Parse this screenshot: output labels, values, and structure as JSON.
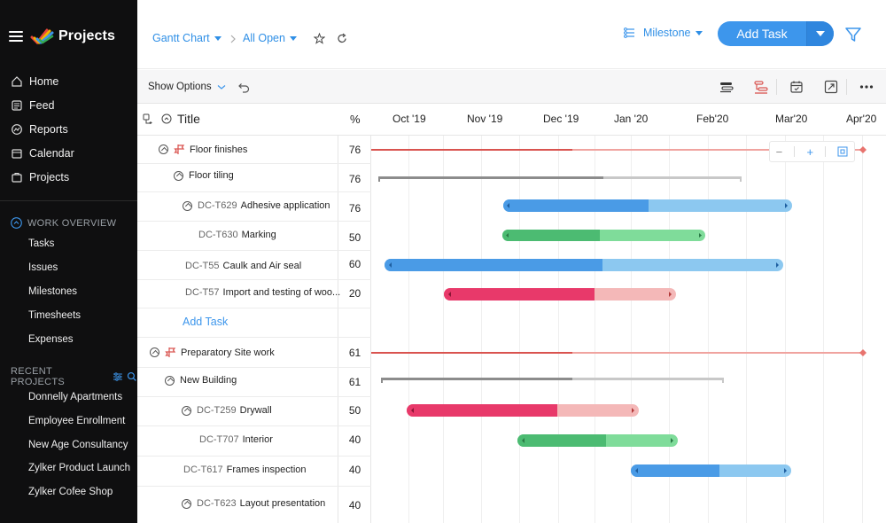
{
  "app": {
    "title": "Projects"
  },
  "sidebar": {
    "nav": [
      {
        "label": "Home",
        "icon": "home-icon"
      },
      {
        "label": "Feed",
        "icon": "feed-icon"
      },
      {
        "label": "Reports",
        "icon": "reports-icon"
      },
      {
        "label": "Calendar",
        "icon": "calendar-icon"
      },
      {
        "label": "Projects",
        "icon": "projects-icon"
      }
    ],
    "work_overview": {
      "heading": "WORK OVERVIEW",
      "items": [
        "Tasks",
        "Issues",
        "Milestones",
        "Timesheets",
        "Expenses"
      ]
    },
    "recent_projects": {
      "heading": "RECENT PROJECTS",
      "items": [
        "Donnelly Apartments",
        "Employee Enrollment",
        "New Age Consultancy",
        "Zylker Product Launch",
        "Zylker Cofee Shop"
      ]
    }
  },
  "topbar": {
    "view": "Gantt Chart",
    "filter": "All Open",
    "group_by": "Milestone",
    "add_task": "Add Task"
  },
  "toolbar": {
    "show_options": "Show Options"
  },
  "grid": {
    "title_header": "Title",
    "pct_header": "%",
    "months": [
      "Oct '19",
      "Nov '19",
      "Dec '19",
      "Jan '20",
      "Feb'20",
      "Mar'20",
      "Apr'20"
    ],
    "add_task_link": "Add Task",
    "rows": [
      {
        "code": "",
        "title": "Floor finishes",
        "pct": "76",
        "kind": "milestone"
      },
      {
        "code": "",
        "title": "Floor tiling",
        "pct": "76",
        "kind": "tasklist"
      },
      {
        "code": "DC-T629",
        "title": "Adhesive application",
        "pct": "76",
        "kind": "task-parent"
      },
      {
        "code": "DC-T630",
        "title": "Marking",
        "pct": "50",
        "kind": "subtask"
      },
      {
        "code": "DC-T55",
        "title": "Caulk and Air seal",
        "pct": "60",
        "kind": "task"
      },
      {
        "code": "DC-T57",
        "title": "Import and testing of woo...",
        "pct": "20",
        "kind": "task"
      },
      {
        "code": "",
        "title": "",
        "pct": "",
        "kind": "add"
      },
      {
        "code": "",
        "title": "Preparatory Site work",
        "pct": "61",
        "kind": "milestone"
      },
      {
        "code": "",
        "title": "New Building",
        "pct": "61",
        "kind": "tasklist"
      },
      {
        "code": "DC-T259",
        "title": "Drywall",
        "pct": "50",
        "kind": "task-parent"
      },
      {
        "code": "DC-T707",
        "title": "Interior",
        "pct": "40",
        "kind": "subtask"
      },
      {
        "code": "DC-T617",
        "title": "Frames inspection",
        "pct": "40",
        "kind": "task"
      },
      {
        "code": "DC-T623",
        "title": "Layout presentation",
        "pct": "40",
        "kind": "task-parent"
      }
    ]
  },
  "colors": {
    "accent": "#3d96ec",
    "milestone": "#d9534f",
    "blue_done": "#4a9be6",
    "blue_rest": "#8cc8f0",
    "green_done": "#4cbb72",
    "green_rest": "#7fdc9a",
    "pink_done": "#e8396a",
    "pink_rest": "#f4b8b8",
    "gray_done": "#8c8c8c",
    "gray_rest": "#c8c8c8"
  }
}
